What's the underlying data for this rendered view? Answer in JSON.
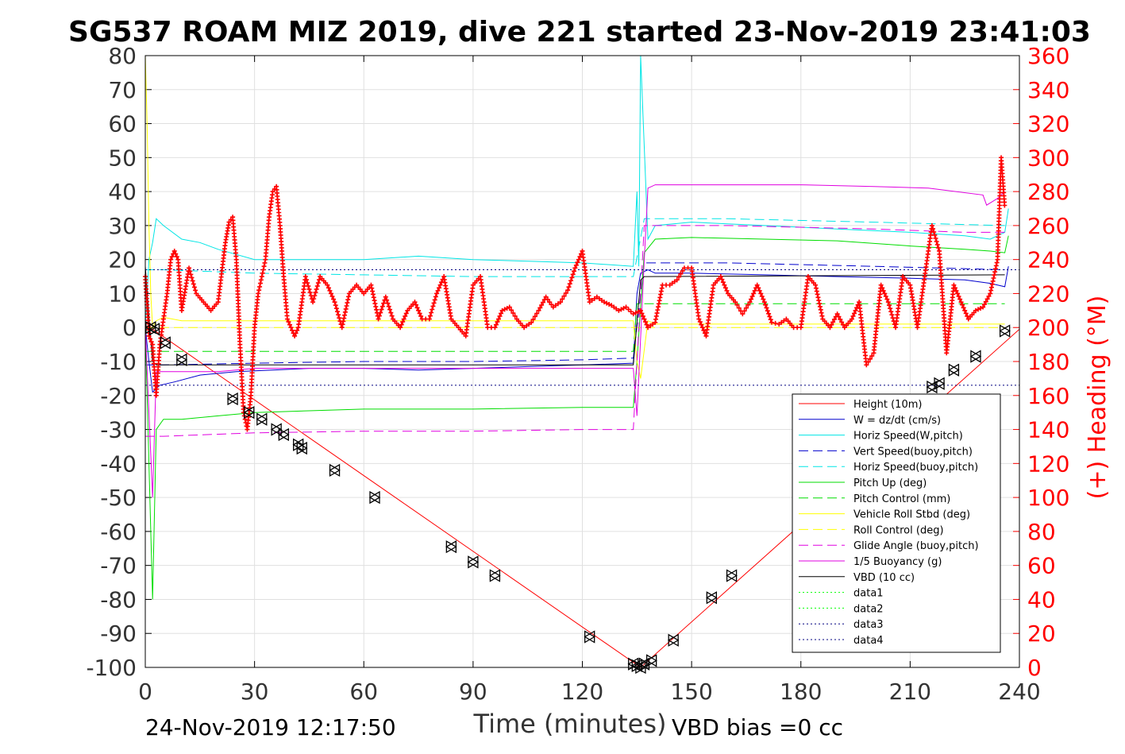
{
  "chart_data": {
    "type": "line",
    "title": "SG537 ROAM MIZ 2019, dive 221 started 23-Nov-2019 23:41:03",
    "xlabel": "Time (minutes)",
    "ylabel": "",
    "ylabel_right": "(+) Heading (°M)",
    "xlim": [
      0,
      240
    ],
    "ylim": [
      -100,
      80
    ],
    "ylim_right": [
      0,
      360
    ],
    "x_ticks": [
      "0",
      "30",
      "60",
      "90",
      "120",
      "150",
      "180",
      "210",
      "240"
    ],
    "y_ticks": [
      "80",
      "70",
      "60",
      "50",
      "40",
      "30",
      "20",
      "10",
      "0",
      "-10",
      "-20",
      "-30",
      "-40",
      "-50",
      "-60",
      "-70",
      "-80",
      "-90",
      "-100"
    ],
    "y_ticks_right": [
      "360",
      "340",
      "320",
      "300",
      "280",
      "260",
      "240",
      "220",
      "200",
      "180",
      "160",
      "140",
      "120",
      "100",
      "80",
      "60",
      "40",
      "20",
      "0"
    ],
    "grid": true,
    "legend_position": "lower-right",
    "footer_left": "24-Nov-2019 12:17:50",
    "footer_right": "VBD bias =0 cc",
    "colors": {
      "red": "#ff0000",
      "blue": "#0000cd",
      "cyan": "#00e5e5",
      "green": "#00dd00",
      "yellow": "#ffff00",
      "magenta": "#e000e0",
      "black": "#000000",
      "lime": "#00ff00",
      "navy": "#000080"
    },
    "series": [
      {
        "name": "Height (10m)",
        "color": "#ff0000",
        "dash": "",
        "width": 1,
        "x": [
          0,
          2,
          136,
          240
        ],
        "y": [
          0,
          -0.5,
          -100,
          -0.5
        ]
      },
      {
        "name": "W = dz/dt (cm/s)",
        "color": "#0000cd",
        "dash": "",
        "width": 1,
        "x": [
          0,
          1,
          2,
          4,
          8,
          15,
          25,
          35,
          45,
          60,
          75,
          90,
          105,
          120,
          134,
          135,
          136,
          138,
          140,
          150,
          170,
          190,
          210,
          225,
          232,
          236,
          237
        ],
        "y": [
          0,
          -10,
          -19,
          -17,
          -16,
          -14,
          -13,
          -12.5,
          -12,
          -12,
          -12.5,
          -12,
          -11.5,
          -11,
          -10.5,
          10,
          16,
          17,
          16,
          16,
          15.5,
          15,
          14.5,
          14,
          13,
          12,
          18
        ]
      },
      {
        "name": "Horiz Speed(W,pitch)",
        "color": "#00e5e5",
        "dash": "",
        "width": 1,
        "x": [
          0,
          1,
          2,
          3,
          5,
          10,
          15,
          20,
          30,
          45,
          60,
          75,
          90,
          105,
          120,
          134,
          135,
          135.5,
          136,
          138,
          140,
          150,
          170,
          190,
          210,
          225,
          232,
          236,
          237
        ],
        "y": [
          0,
          20,
          25,
          32,
          30,
          26,
          25,
          23,
          20,
          20,
          20,
          21,
          20,
          19.5,
          19,
          18,
          40,
          18,
          80,
          26,
          30,
          31,
          30,
          29,
          28,
          27,
          26,
          28,
          35
        ]
      },
      {
        "name": "Vert Speed(buoy,pitch)",
        "color": "#0000cd",
        "dash": "12,6",
        "width": 1,
        "x": [
          0,
          5,
          30,
          60,
          90,
          120,
          134,
          137,
          160,
          200,
          236
        ],
        "y": [
          -11,
          -11,
          -10.5,
          -10,
          -10,
          -9.5,
          -9,
          19,
          19,
          18,
          17
        ]
      },
      {
        "name": "Horiz Speed(buoy,pitch)",
        "color": "#00e5e5",
        "dash": "12,6",
        "width": 1,
        "x": [
          0,
          5,
          30,
          60,
          90,
          120,
          134,
          137,
          160,
          200,
          236
        ],
        "y": [
          17,
          17,
          16,
          15.5,
          15,
          15,
          15,
          32,
          32,
          31,
          30
        ]
      },
      {
        "name": "Pitch Up (deg)",
        "color": "#00dd00",
        "dash": "",
        "width": 1,
        "x": [
          0,
          1,
          2,
          3,
          5,
          10,
          20,
          30,
          45,
          60,
          90,
          120,
          134,
          135,
          137,
          140,
          150,
          170,
          190,
          210,
          225,
          232,
          236,
          237
        ],
        "y": [
          0,
          -40,
          -80,
          -30,
          -27,
          -27,
          -26,
          -25,
          -24.5,
          -24,
          -24,
          -23.5,
          -23.5,
          -10,
          22,
          26,
          26.5,
          26,
          25.5,
          24,
          23,
          22.5,
          22,
          27
        ]
      },
      {
        "name": "Pitch Control (mm)",
        "color": "#00dd00",
        "dash": "12,6",
        "width": 1,
        "x": [
          0,
          134,
          135,
          236
        ],
        "y": [
          -7,
          -7,
          7,
          7
        ]
      },
      {
        "name": "Vehicle Roll Stbd (deg)",
        "color": "#ffff00",
        "dash": "",
        "width": 1,
        "x": [
          0,
          0.5,
          1,
          1.5,
          2,
          3,
          5,
          10,
          20,
          30,
          45,
          60,
          90,
          120,
          134,
          135,
          136,
          138,
          140,
          150,
          170,
          190,
          210,
          225,
          236
        ],
        "y": [
          80,
          60,
          30,
          10,
          0,
          2,
          3,
          2,
          2,
          2,
          2,
          2,
          2,
          2,
          2,
          -10,
          -15,
          2,
          1,
          1,
          1,
          1,
          1,
          1,
          1
        ]
      },
      {
        "name": "Roll Control (deg)",
        "color": "#ffff00",
        "dash": "12,6",
        "width": 1,
        "x": [
          0,
          236
        ],
        "y": [
          0,
          0
        ]
      },
      {
        "name": "Glide Angle (buoy,pitch)",
        "color": "#e000e0",
        "dash": "12,6",
        "width": 1,
        "x": [
          0,
          5,
          30,
          60,
          90,
          120,
          134,
          137,
          160,
          200,
          225,
          236
        ],
        "y": [
          -32,
          -32,
          -31,
          -30.5,
          -30.5,
          -30,
          -30,
          30,
          30,
          29,
          28,
          28
        ]
      },
      {
        "name": "1/5 Buoyancy (g)",
        "color": "#e000e0",
        "dash": "",
        "width": 1,
        "x": [
          0,
          2,
          3,
          20,
          30,
          60,
          90,
          120,
          134,
          135,
          137,
          138,
          140,
          160,
          180,
          200,
          215,
          230,
          231,
          234,
          236
        ],
        "y": [
          0,
          -50,
          -13,
          -13,
          -12,
          -12,
          -12,
          -12,
          -12,
          -26,
          20,
          41,
          42,
          42,
          42,
          41.5,
          41,
          39,
          36,
          38,
          40
        ]
      },
      {
        "name": "VBD (10 cc)",
        "color": "#000000",
        "dash": "",
        "width": 1,
        "x": [
          0,
          1,
          2,
          3,
          134,
          136,
          137,
          236
        ],
        "y": [
          18,
          3,
          -10,
          -11,
          -11,
          14,
          15,
          15.5
        ]
      },
      {
        "name": "data1",
        "color": "#00ff00",
        "dash": "2,3",
        "width": 1,
        "x": [],
        "y": []
      },
      {
        "name": "data2",
        "color": "#00ff00",
        "dash": "2,3",
        "width": 1,
        "x": [],
        "y": []
      },
      {
        "name": "data3",
        "color": "#000080",
        "dash": "2,3",
        "width": 1,
        "x": [
          0,
          240
        ],
        "y": [
          17,
          17
        ]
      },
      {
        "name": "data4",
        "color": "#000080",
        "dash": "2,3",
        "width": 1,
        "x": [
          0,
          240
        ],
        "y": [
          -17,
          -17
        ]
      }
    ],
    "heading_series": {
      "name": "",
      "color": "#ff0000",
      "marker": "+",
      "x": [
        0,
        1,
        2,
        3,
        4,
        5,
        6,
        7,
        8,
        9,
        10,
        12,
        14,
        16,
        18,
        20,
        22,
        23,
        24,
        25,
        26,
        27,
        28,
        29,
        30,
        31,
        32,
        33,
        34,
        35,
        36,
        37,
        38,
        39,
        40,
        41,
        42,
        44,
        46,
        48,
        50,
        52,
        54,
        56,
        58,
        60,
        62,
        64,
        66,
        68,
        70,
        72,
        74,
        76,
        78,
        80,
        82,
        84,
        86,
        88,
        90,
        92,
        94,
        96,
        98,
        100,
        102,
        104,
        106,
        108,
        110,
        112,
        114,
        116,
        118,
        120,
        122,
        124,
        126,
        128,
        130,
        132,
        134,
        136,
        138,
        140,
        142,
        144,
        146,
        148,
        150,
        152,
        154,
        156,
        158,
        160,
        162,
        164,
        166,
        168,
        170,
        172,
        174,
        176,
        178,
        180,
        182,
        184,
        186,
        188,
        190,
        192,
        194,
        196,
        198,
        200,
        202,
        204,
        206,
        208,
        210,
        212,
        214,
        216,
        218,
        220,
        222,
        224,
        226,
        228,
        230,
        232,
        234,
        235,
        236
      ],
      "y": [
        230,
        195,
        190,
        160,
        190,
        205,
        220,
        240,
        245,
        240,
        210,
        235,
        220,
        215,
        210,
        215,
        250,
        262,
        265,
        240,
        190,
        150,
        140,
        160,
        200,
        220,
        230,
        240,
        265,
        280,
        283,
        260,
        230,
        205,
        200,
        195,
        200,
        230,
        215,
        230,
        225,
        215,
        200,
        220,
        225,
        220,
        225,
        205,
        218,
        205,
        200,
        210,
        215,
        205,
        205,
        220,
        230,
        205,
        200,
        195,
        225,
        230,
        200,
        200,
        210,
        212,
        205,
        200,
        203,
        210,
        218,
        212,
        215,
        222,
        235,
        245,
        215,
        218,
        215,
        213,
        210,
        212,
        208,
        210,
        200,
        203,
        225,
        225,
        228,
        235,
        235,
        205,
        195,
        225,
        230,
        220,
        215,
        208,
        215,
        225,
        215,
        203,
        202,
        205,
        200,
        200,
        230,
        225,
        205,
        200,
        208,
        200,
        205,
        215,
        178,
        185,
        225,
        215,
        200,
        230,
        225,
        200,
        230,
        260,
        245,
        185,
        225,
        215,
        205,
        210,
        212,
        220,
        240,
        300,
        270
      ]
    },
    "height_markers": {
      "x": [
        1.5,
        2.5,
        5.5,
        10,
        24,
        28.5,
        32,
        36,
        38,
        42,
        43,
        52,
        63,
        84,
        90,
        96,
        122,
        134,
        135,
        136,
        137,
        139,
        145,
        155.5,
        161,
        216,
        218,
        222,
        228,
        236
      ],
      "y": [
        0,
        -0.5,
        -4.5,
        -9.5,
        -21,
        -25,
        -27,
        -30,
        -31.5,
        -34.5,
        -35.5,
        -42,
        -50,
        -64.5,
        -69,
        -73,
        -91,
        -99,
        -99.5,
        -100,
        -99,
        -98,
        -92,
        -79.5,
        -73,
        -17.5,
        -16.5,
        -12.5,
        -8.5,
        -1
      ]
    }
  }
}
